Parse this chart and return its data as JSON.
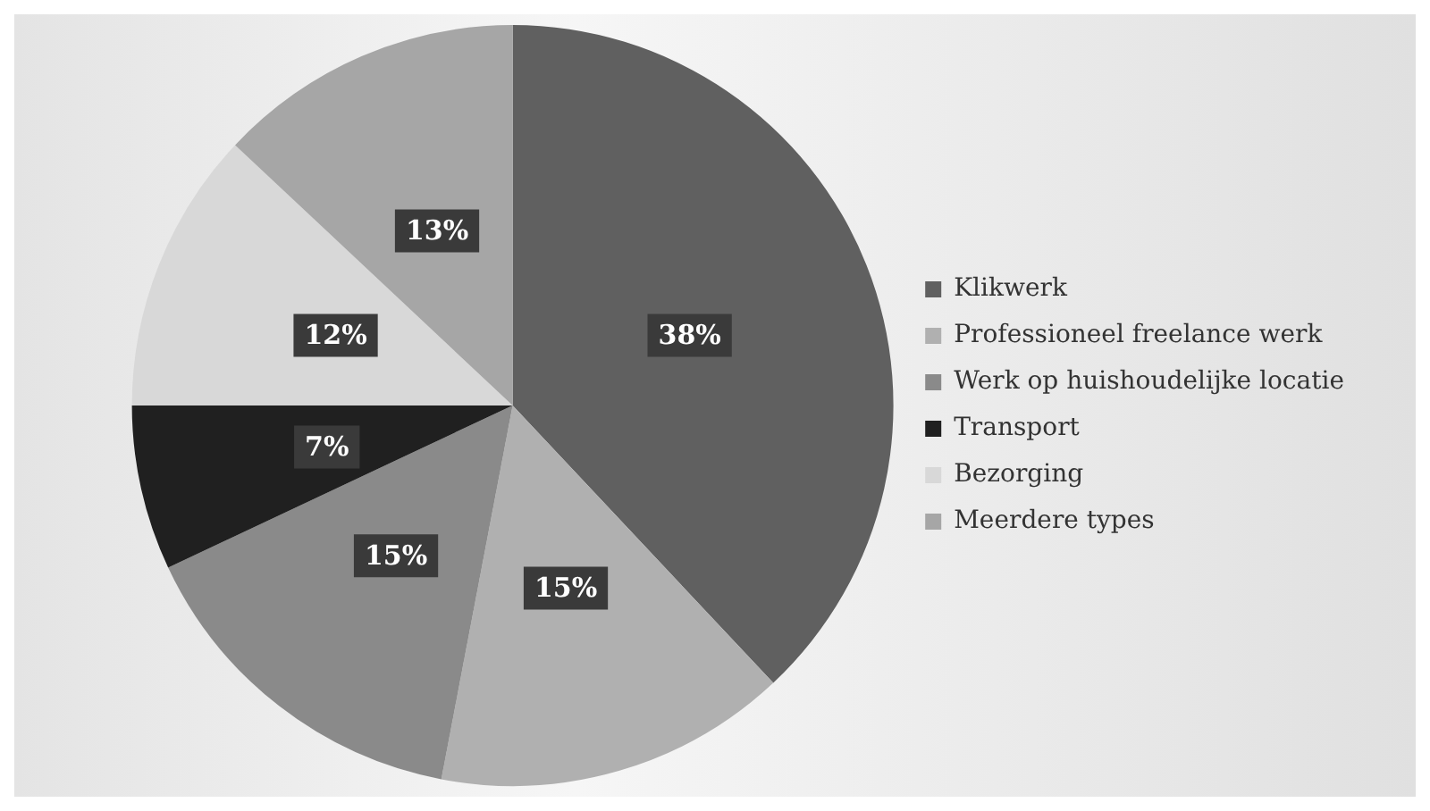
{
  "chart_data": {
    "type": "pie",
    "categories": [
      "Klikwerk",
      "Professioneel freelance werk",
      "Werk op huishoudelijke locatie",
      "Transport",
      "Bezorging",
      "Meerdere types"
    ],
    "values": [
      38,
      15,
      15,
      7,
      12,
      13
    ],
    "colors": [
      "#606060",
      "#b0b0b0",
      "#8a8a8a",
      "#202020",
      "#d8d8d8",
      "#a6a6a6"
    ],
    "value_labels": [
      "38%",
      "15%",
      "15%",
      "7%",
      "12%",
      "13%"
    ],
    "legend": "right"
  }
}
